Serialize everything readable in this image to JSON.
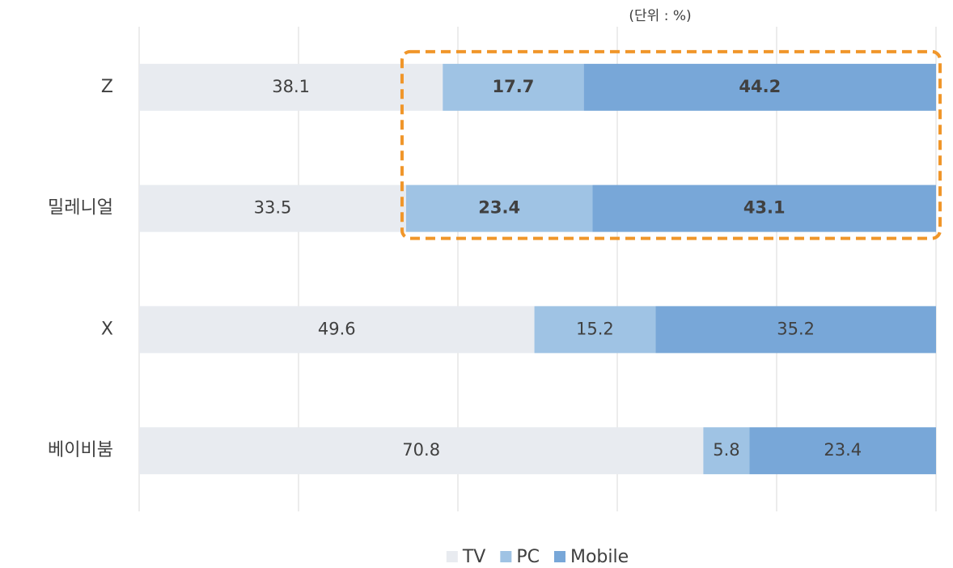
{
  "chart_data": {
    "type": "stacked_barh",
    "subtitle": "(단위 : %)",
    "categories": [
      "Z",
      "밀레니얼",
      "X",
      "베이비붐"
    ],
    "series": [
      {
        "name": "TV",
        "color": "#e8ebf0",
        "values": [
          38.1,
          33.5,
          49.6,
          70.8
        ]
      },
      {
        "name": "PC",
        "color": "#9fc3e4",
        "values": [
          17.7,
          23.4,
          15.2,
          5.8
        ]
      },
      {
        "name": "Mobile",
        "color": "#78a7d8",
        "values": [
          44.2,
          43.1,
          35.2,
          23.4
        ]
      }
    ],
    "xlim": [
      0,
      100
    ],
    "xticks": [
      0,
      20,
      40,
      60,
      80,
      100
    ],
    "grid": true,
    "legend": "bottom",
    "highlight": {
      "categories": [
        0,
        1
      ],
      "series": [
        1,
        2
      ],
      "color": "#f0962a"
    }
  }
}
